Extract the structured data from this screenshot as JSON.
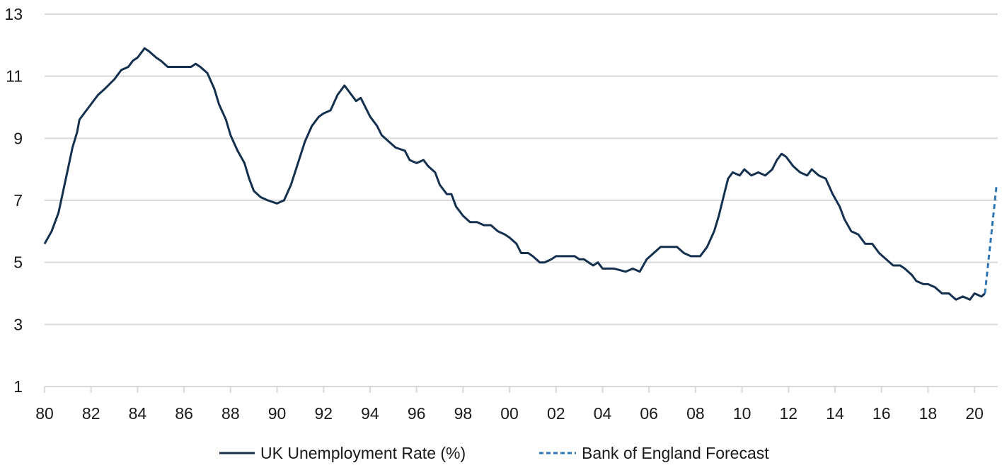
{
  "chart_data": {
    "type": "line",
    "title": "",
    "xlabel": "",
    "ylabel": "",
    "xlim": [
      1980,
      2021
    ],
    "ylim": [
      1,
      13
    ],
    "grid": true,
    "legend_position": "bottom",
    "y_ticks": [
      {
        "value": 1,
        "label": "1"
      },
      {
        "value": 3,
        "label": "3"
      },
      {
        "value": 5,
        "label": "5"
      },
      {
        "value": 7,
        "label": "7"
      },
      {
        "value": 9,
        "label": "9"
      },
      {
        "value": 11,
        "label": "11"
      },
      {
        "value": 13,
        "label": "13"
      }
    ],
    "x_ticks": [
      {
        "value": 1980,
        "label": "80"
      },
      {
        "value": 1982,
        "label": "82"
      },
      {
        "value": 1984,
        "label": "84"
      },
      {
        "value": 1986,
        "label": "86"
      },
      {
        "value": 1988,
        "label": "88"
      },
      {
        "value": 1990,
        "label": "90"
      },
      {
        "value": 1992,
        "label": "92"
      },
      {
        "value": 1994,
        "label": "94"
      },
      {
        "value": 1996,
        "label": "96"
      },
      {
        "value": 1998,
        "label": "98"
      },
      {
        "value": 2000,
        "label": "00"
      },
      {
        "value": 2002,
        "label": "02"
      },
      {
        "value": 2004,
        "label": "04"
      },
      {
        "value": 2006,
        "label": "06"
      },
      {
        "value": 2008,
        "label": "08"
      },
      {
        "value": 2010,
        "label": "10"
      },
      {
        "value": 2012,
        "label": "12"
      },
      {
        "value": 2014,
        "label": "14"
      },
      {
        "value": 2016,
        "label": "16"
      },
      {
        "value": 2018,
        "label": "18"
      },
      {
        "value": 2020,
        "label": "20"
      }
    ],
    "series": [
      {
        "name": "UK Unemployment Rate (%)",
        "color": "#14304f",
        "style": "solid",
        "points": [
          [
            1980.0,
            5.6
          ],
          [
            1980.3,
            6.0
          ],
          [
            1980.6,
            6.6
          ],
          [
            1980.8,
            7.3
          ],
          [
            1981.0,
            8.0
          ],
          [
            1981.2,
            8.7
          ],
          [
            1981.4,
            9.2
          ],
          [
            1981.5,
            9.6
          ],
          [
            1981.8,
            9.9
          ],
          [
            1982.0,
            10.1
          ],
          [
            1982.3,
            10.4
          ],
          [
            1982.6,
            10.6
          ],
          [
            1983.0,
            10.9
          ],
          [
            1983.3,
            11.2
          ],
          [
            1983.6,
            11.3
          ],
          [
            1983.8,
            11.5
          ],
          [
            1984.0,
            11.6
          ],
          [
            1984.2,
            11.8
          ],
          [
            1984.3,
            11.9
          ],
          [
            1984.5,
            11.8
          ],
          [
            1984.8,
            11.6
          ],
          [
            1985.0,
            11.5
          ],
          [
            1985.3,
            11.3
          ],
          [
            1985.6,
            11.3
          ],
          [
            1986.0,
            11.3
          ],
          [
            1986.3,
            11.3
          ],
          [
            1986.5,
            11.4
          ],
          [
            1986.7,
            11.3
          ],
          [
            1987.0,
            11.1
          ],
          [
            1987.3,
            10.6
          ],
          [
            1987.5,
            10.1
          ],
          [
            1987.8,
            9.6
          ],
          [
            1988.0,
            9.1
          ],
          [
            1988.3,
            8.6
          ],
          [
            1988.6,
            8.2
          ],
          [
            1988.8,
            7.7
          ],
          [
            1989.0,
            7.3
          ],
          [
            1989.3,
            7.1
          ],
          [
            1989.6,
            7.0
          ],
          [
            1990.0,
            6.9
          ],
          [
            1990.3,
            7.0
          ],
          [
            1990.6,
            7.5
          ],
          [
            1990.9,
            8.2
          ],
          [
            1991.2,
            8.9
          ],
          [
            1991.5,
            9.4
          ],
          [
            1991.8,
            9.7
          ],
          [
            1992.0,
            9.8
          ],
          [
            1992.3,
            9.9
          ],
          [
            1992.6,
            10.4
          ],
          [
            1992.9,
            10.7
          ],
          [
            1993.1,
            10.5
          ],
          [
            1993.4,
            10.2
          ],
          [
            1993.6,
            10.3
          ],
          [
            1993.8,
            10.0
          ],
          [
            1994.0,
            9.7
          ],
          [
            1994.3,
            9.4
          ],
          [
            1994.5,
            9.1
          ],
          [
            1994.8,
            8.9
          ],
          [
            1995.1,
            8.7
          ],
          [
            1995.5,
            8.6
          ],
          [
            1995.7,
            8.3
          ],
          [
            1996.0,
            8.2
          ],
          [
            1996.3,
            8.3
          ],
          [
            1996.5,
            8.1
          ],
          [
            1996.8,
            7.9
          ],
          [
            1997.0,
            7.5
          ],
          [
            1997.3,
            7.2
          ],
          [
            1997.5,
            7.2
          ],
          [
            1997.7,
            6.8
          ],
          [
            1998.0,
            6.5
          ],
          [
            1998.3,
            6.3
          ],
          [
            1998.6,
            6.3
          ],
          [
            1998.9,
            6.2
          ],
          [
            1999.2,
            6.2
          ],
          [
            1999.5,
            6.0
          ],
          [
            1999.8,
            5.9
          ],
          [
            2000.0,
            5.8
          ],
          [
            2000.3,
            5.6
          ],
          [
            2000.5,
            5.3
          ],
          [
            2000.8,
            5.3
          ],
          [
            2001.0,
            5.2
          ],
          [
            2001.3,
            5.0
          ],
          [
            2001.5,
            5.0
          ],
          [
            2001.8,
            5.1
          ],
          [
            2002.0,
            5.2
          ],
          [
            2002.3,
            5.2
          ],
          [
            2002.6,
            5.2
          ],
          [
            2002.8,
            5.2
          ],
          [
            2003.0,
            5.1
          ],
          [
            2003.2,
            5.1
          ],
          [
            2003.4,
            5.0
          ],
          [
            2003.6,
            4.9
          ],
          [
            2003.8,
            5.0
          ],
          [
            2004.0,
            4.8
          ],
          [
            2004.5,
            4.8
          ],
          [
            2005.0,
            4.7
          ],
          [
            2005.3,
            4.8
          ],
          [
            2005.6,
            4.7
          ],
          [
            2005.9,
            5.1
          ],
          [
            2006.2,
            5.3
          ],
          [
            2006.5,
            5.5
          ],
          [
            2006.8,
            5.5
          ],
          [
            2007.2,
            5.5
          ],
          [
            2007.5,
            5.3
          ],
          [
            2007.8,
            5.2
          ],
          [
            2008.2,
            5.2
          ],
          [
            2008.5,
            5.5
          ],
          [
            2008.8,
            6.0
          ],
          [
            2009.0,
            6.5
          ],
          [
            2009.2,
            7.1
          ],
          [
            2009.4,
            7.7
          ],
          [
            2009.6,
            7.9
          ],
          [
            2009.9,
            7.8
          ],
          [
            2010.1,
            8.0
          ],
          [
            2010.4,
            7.8
          ],
          [
            2010.7,
            7.9
          ],
          [
            2011.0,
            7.8
          ],
          [
            2011.3,
            8.0
          ],
          [
            2011.5,
            8.3
          ],
          [
            2011.7,
            8.5
          ],
          [
            2011.9,
            8.4
          ],
          [
            2012.2,
            8.1
          ],
          [
            2012.5,
            7.9
          ],
          [
            2012.8,
            7.8
          ],
          [
            2013.0,
            8.0
          ],
          [
            2013.3,
            7.8
          ],
          [
            2013.6,
            7.7
          ],
          [
            2013.9,
            7.2
          ],
          [
            2014.2,
            6.8
          ],
          [
            2014.4,
            6.4
          ],
          [
            2014.7,
            6.0
          ],
          [
            2015.0,
            5.9
          ],
          [
            2015.3,
            5.6
          ],
          [
            2015.6,
            5.6
          ],
          [
            2015.9,
            5.3
          ],
          [
            2016.2,
            5.1
          ],
          [
            2016.5,
            4.9
          ],
          [
            2016.8,
            4.9
          ],
          [
            2017.0,
            4.8
          ],
          [
            2017.3,
            4.6
          ],
          [
            2017.5,
            4.4
          ],
          [
            2017.8,
            4.3
          ],
          [
            2018.0,
            4.3
          ],
          [
            2018.3,
            4.2
          ],
          [
            2018.6,
            4.0
          ],
          [
            2018.9,
            4.0
          ],
          [
            2019.2,
            3.8
          ],
          [
            2019.5,
            3.9
          ],
          [
            2019.8,
            3.8
          ],
          [
            2020.0,
            4.0
          ],
          [
            2020.3,
            3.9
          ],
          [
            2020.45,
            4.0
          ]
        ]
      },
      {
        "name": "Bank of England Forecast",
        "color": "#2e75b6",
        "style": "dashed",
        "points": [
          [
            2020.45,
            4.0
          ],
          [
            2020.95,
            7.5
          ]
        ]
      }
    ]
  }
}
